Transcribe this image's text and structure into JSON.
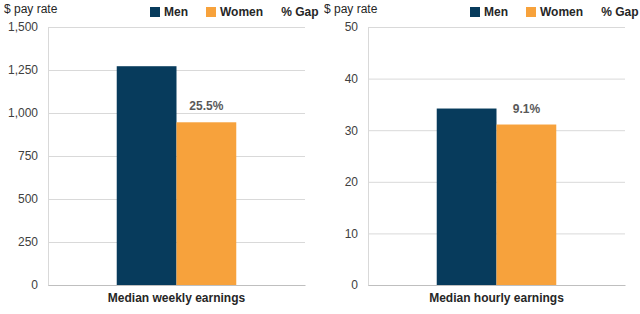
{
  "chart_data": [
    {
      "type": "bar",
      "y_label": "$ pay rate",
      "categories": [
        "Median weekly earnings"
      ],
      "series": [
        {
          "name": "Men",
          "color": "#073b5c",
          "values": [
            1272
          ]
        },
        {
          "name": "Women",
          "color": "#f7a23c",
          "values": [
            946
          ]
        },
        {
          "name": "% Gap",
          "type": "text",
          "values": [
            25.5
          ],
          "value_labels": [
            "25.5%"
          ]
        }
      ],
      "ylim": [
        0,
        1500
      ],
      "yticks": [
        0,
        250,
        500,
        750,
        {
          "value": 1000,
          "label": "1,000"
        },
        {
          "value": 1250,
          "label": "1,250"
        },
        {
          "value": 1500,
          "label": "1,500"
        }
      ],
      "grid": true,
      "legend": "top"
    },
    {
      "type": "bar",
      "y_label": "$ pay rate",
      "categories": [
        "Median hourly earnings"
      ],
      "series": [
        {
          "name": "Men",
          "color": "#073b5c",
          "values": [
            34.2
          ]
        },
        {
          "name": "Women",
          "color": "#f7a23c",
          "values": [
            31.1
          ]
        },
        {
          "name": "% Gap",
          "type": "text",
          "values": [
            9.1
          ],
          "value_labels": [
            "9.1%"
          ]
        }
      ],
      "ylim": [
        0,
        50
      ],
      "yticks": [
        0,
        10,
        20,
        30,
        40,
        50
      ],
      "grid": true,
      "legend": "top"
    }
  ]
}
